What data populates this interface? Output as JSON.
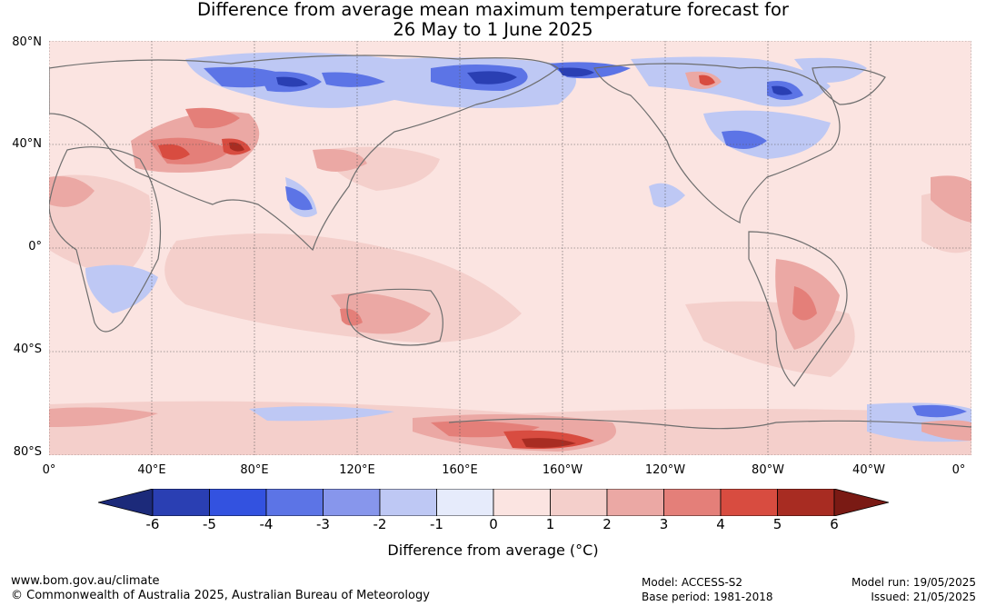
{
  "title": {
    "line1": "Difference from average mean maximum temperature forecast for",
    "line2": "26 May to 1 June 2025"
  },
  "map": {
    "lat_labels": [
      "80°N",
      "40°N",
      "0°",
      "40°S",
      "80°S"
    ],
    "lon_labels": [
      "0°",
      "40°E",
      "80°E",
      "120°E",
      "160°E",
      "160°W",
      "120°W",
      "80°W",
      "40°W",
      "0°"
    ],
    "ocean_color": "#fbe4e1",
    "coastline_color": "#6e6e6e"
  },
  "colorbar": {
    "ticks": [
      "-6",
      "-5",
      "-4",
      "-3",
      "-2",
      "-1",
      "0",
      "1",
      "2",
      "3",
      "4",
      "5",
      "6"
    ],
    "colors": [
      "#1c2a7a",
      "#2a3fb3",
      "#3352e0",
      "#5c74e6",
      "#8796ec",
      "#bec8f4",
      "#e6ebfb",
      "#fbe4e1",
      "#f4cfcb",
      "#eba8a4",
      "#e47f79",
      "#d84c40",
      "#a82c22",
      "#7a1a14"
    ],
    "label": "Difference from average (°C)"
  },
  "footer": {
    "website": "www.bom.gov.au/climate",
    "copyright": "© Commonwealth of Australia 2025, Australian Bureau of Meteorology",
    "model": "Model: ACCESS-S2",
    "base_period": "Base period: 1981-2018",
    "model_run": "Model run: 19/05/2025",
    "issued": "Issued: 21/05/2025"
  }
}
